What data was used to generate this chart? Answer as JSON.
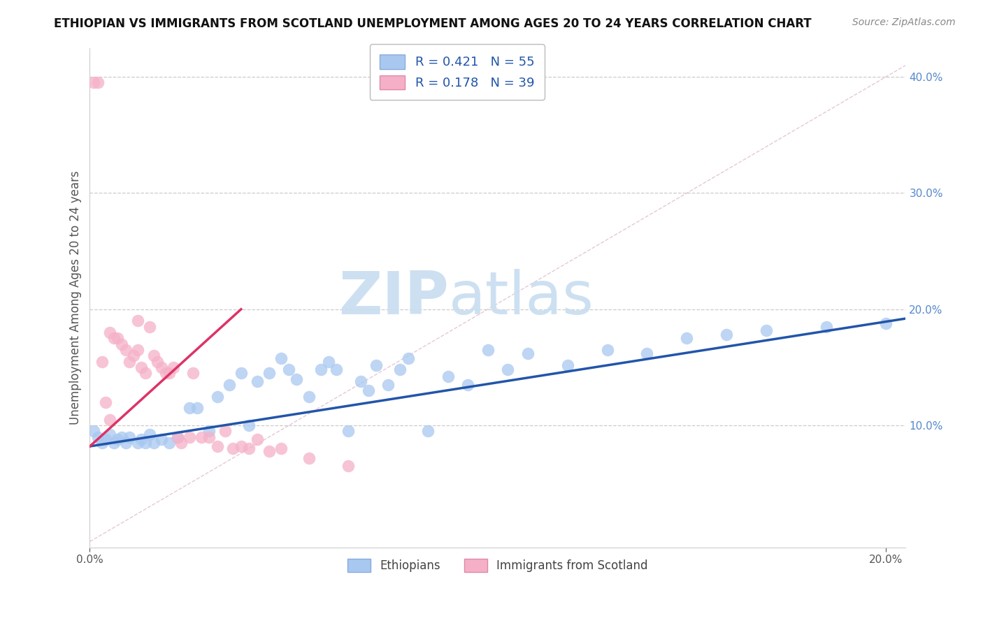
{
  "title": "ETHIOPIAN VS IMMIGRANTS FROM SCOTLAND UNEMPLOYMENT AMONG AGES 20 TO 24 YEARS CORRELATION CHART",
  "source": "Source: ZipAtlas.com",
  "ylabel": "Unemployment Among Ages 20 to 24 years",
  "xlim": [
    0.0,
    0.205
  ],
  "ylim": [
    -0.005,
    0.425
  ],
  "xticks": [
    0.0,
    0.2
  ],
  "yticks": [
    0.1,
    0.2,
    0.3,
    0.4
  ],
  "grid_yticks": [
    0.1,
    0.2,
    0.3,
    0.4
  ],
  "blue_color": "#a8c8f0",
  "pink_color": "#f5b0c8",
  "blue_line_color": "#2255aa",
  "pink_line_color": "#dd3366",
  "diag_color": "#cccccc",
  "watermark_color": "#cce0f5",
  "legend_r1": "R = 0.421",
  "legend_n1": "N = 55",
  "legend_r2": "R = 0.178",
  "legend_n2": "N = 39",
  "tick_color": "#5588cc",
  "title_fontsize": 12,
  "source_fontsize": 10,
  "ylabel_fontsize": 12,
  "tick_fontsize": 11,
  "legend_fontsize": 13,
  "eth_x": [
    0.001,
    0.002,
    0.003,
    0.004,
    0.005,
    0.006,
    0.007,
    0.008,
    0.009,
    0.01,
    0.012,
    0.013,
    0.014,
    0.015,
    0.016,
    0.018,
    0.02,
    0.022,
    0.025,
    0.027,
    0.03,
    0.032,
    0.035,
    0.038,
    0.04,
    0.042,
    0.045,
    0.048,
    0.05,
    0.052,
    0.055,
    0.058,
    0.06,
    0.062,
    0.065,
    0.068,
    0.07,
    0.072,
    0.075,
    0.078,
    0.08,
    0.085,
    0.09,
    0.095,
    0.1,
    0.105,
    0.11,
    0.12,
    0.13,
    0.14,
    0.15,
    0.16,
    0.17,
    0.185,
    0.2
  ],
  "eth_y": [
    0.095,
    0.09,
    0.085,
    0.088,
    0.092,
    0.085,
    0.088,
    0.09,
    0.085,
    0.09,
    0.085,
    0.088,
    0.085,
    0.092,
    0.085,
    0.088,
    0.085,
    0.09,
    0.115,
    0.115,
    0.095,
    0.125,
    0.135,
    0.145,
    0.1,
    0.138,
    0.145,
    0.158,
    0.148,
    0.14,
    0.125,
    0.148,
    0.155,
    0.148,
    0.095,
    0.138,
    0.13,
    0.152,
    0.135,
    0.148,
    0.158,
    0.095,
    0.142,
    0.135,
    0.165,
    0.148,
    0.162,
    0.152,
    0.165,
    0.162,
    0.175,
    0.178,
    0.182,
    0.185,
    0.188
  ],
  "scot_x": [
    0.001,
    0.002,
    0.003,
    0.004,
    0.005,
    0.005,
    0.006,
    0.007,
    0.008,
    0.009,
    0.01,
    0.011,
    0.012,
    0.012,
    0.013,
    0.014,
    0.015,
    0.016,
    0.017,
    0.018,
    0.019,
    0.02,
    0.021,
    0.022,
    0.023,
    0.025,
    0.026,
    0.028,
    0.03,
    0.032,
    0.034,
    0.036,
    0.038,
    0.04,
    0.042,
    0.045,
    0.048,
    0.055,
    0.065
  ],
  "scot_y": [
    0.395,
    0.395,
    0.155,
    0.12,
    0.105,
    0.18,
    0.175,
    0.175,
    0.17,
    0.165,
    0.155,
    0.16,
    0.19,
    0.165,
    0.15,
    0.145,
    0.185,
    0.16,
    0.155,
    0.15,
    0.145,
    0.145,
    0.15,
    0.09,
    0.085,
    0.09,
    0.145,
    0.09,
    0.09,
    0.082,
    0.095,
    0.08,
    0.082,
    0.08,
    0.088,
    0.078,
    0.08,
    0.072,
    0.065
  ],
  "blue_line_x0": 0.0,
  "blue_line_x1": 0.205,
  "blue_line_y0": 0.082,
  "blue_line_y1": 0.192,
  "pink_line_x0": 0.0,
  "pink_line_x1": 0.038,
  "pink_line_y0": 0.082,
  "pink_line_y1": 0.2
}
